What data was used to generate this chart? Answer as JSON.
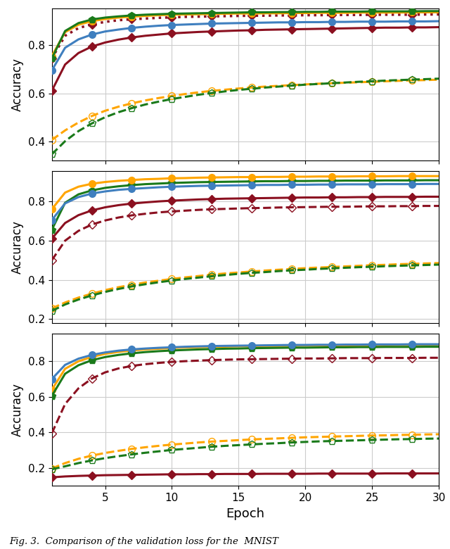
{
  "epochs": [
    1,
    2,
    3,
    4,
    5,
    6,
    7,
    8,
    9,
    10,
    11,
    12,
    13,
    14,
    15,
    16,
    17,
    18,
    19,
    20,
    21,
    22,
    23,
    24,
    25,
    26,
    27,
    28,
    29,
    30
  ],
  "colors": {
    "blue": "#3F7FBF",
    "orange": "#FFA500",
    "green": "#1A7A1A",
    "crimson": "#8B1020"
  },
  "subplot1": {
    "ylim": [
      0.32,
      0.955
    ],
    "yticks": [
      0.4,
      0.6,
      0.8
    ],
    "lines": {
      "green_solid": [
        0.745,
        0.86,
        0.893,
        0.908,
        0.916,
        0.921,
        0.925,
        0.928,
        0.93,
        0.932,
        0.933,
        0.934,
        0.935,
        0.936,
        0.937,
        0.938,
        0.938,
        0.939,
        0.939,
        0.94,
        0.94,
        0.941,
        0.941,
        0.941,
        0.942,
        0.942,
        0.942,
        0.942,
        0.943,
        0.943
      ],
      "orange_solid": [
        0.755,
        0.855,
        0.886,
        0.901,
        0.91,
        0.916,
        0.92,
        0.923,
        0.926,
        0.928,
        0.929,
        0.93,
        0.931,
        0.932,
        0.933,
        0.933,
        0.934,
        0.934,
        0.935,
        0.935,
        0.936,
        0.936,
        0.936,
        0.937,
        0.937,
        0.937,
        0.937,
        0.938,
        0.938,
        0.938
      ],
      "crimson_dotted": [
        0.745,
        0.84,
        0.872,
        0.888,
        0.898,
        0.905,
        0.909,
        0.912,
        0.915,
        0.917,
        0.919,
        0.92,
        0.921,
        0.922,
        0.923,
        0.924,
        0.924,
        0.925,
        0.925,
        0.926,
        0.926,
        0.927,
        0.927,
        0.927,
        0.928,
        0.928,
        0.928,
        0.928,
        0.929,
        0.929
      ],
      "blue_solid": [
        0.695,
        0.79,
        0.825,
        0.845,
        0.858,
        0.866,
        0.873,
        0.878,
        0.882,
        0.885,
        0.887,
        0.889,
        0.891,
        0.892,
        0.893,
        0.894,
        0.895,
        0.896,
        0.896,
        0.897,
        0.897,
        0.898,
        0.898,
        0.899,
        0.899,
        0.899,
        0.9,
        0.9,
        0.9,
        0.901
      ],
      "crimson_solid": [
        0.61,
        0.72,
        0.768,
        0.795,
        0.812,
        0.824,
        0.833,
        0.84,
        0.845,
        0.85,
        0.853,
        0.856,
        0.858,
        0.86,
        0.862,
        0.863,
        0.865,
        0.866,
        0.867,
        0.868,
        0.869,
        0.87,
        0.871,
        0.872,
        0.873,
        0.874,
        0.874,
        0.875,
        0.875,
        0.876
      ],
      "orange_dashed": [
        0.405,
        0.445,
        0.478,
        0.505,
        0.527,
        0.544,
        0.558,
        0.57,
        0.58,
        0.589,
        0.597,
        0.604,
        0.61,
        0.615,
        0.62,
        0.624,
        0.628,
        0.631,
        0.634,
        0.637,
        0.64,
        0.642,
        0.644,
        0.646,
        0.648,
        0.65,
        0.652,
        0.654,
        0.655,
        0.657
      ],
      "green_dashed": [
        0.345,
        0.4,
        0.442,
        0.474,
        0.5,
        0.521,
        0.538,
        0.553,
        0.565,
        0.576,
        0.585,
        0.594,
        0.601,
        0.608,
        0.614,
        0.619,
        0.624,
        0.628,
        0.632,
        0.636,
        0.639,
        0.642,
        0.645,
        0.648,
        0.65,
        0.653,
        0.655,
        0.657,
        0.659,
        0.661
      ]
    }
  },
  "subplot2": {
    "ylim": [
      0.18,
      0.955
    ],
    "yticks": [
      0.2,
      0.4,
      0.6,
      0.8
    ],
    "lines": {
      "orange_solid": [
        0.76,
        0.845,
        0.875,
        0.89,
        0.899,
        0.905,
        0.909,
        0.913,
        0.915,
        0.918,
        0.919,
        0.921,
        0.922,
        0.923,
        0.924,
        0.924,
        0.925,
        0.925,
        0.926,
        0.926,
        0.927,
        0.927,
        0.927,
        0.928,
        0.928,
        0.928,
        0.929,
        0.929,
        0.929,
        0.929
      ],
      "green_solid": [
        0.655,
        0.793,
        0.836,
        0.856,
        0.869,
        0.877,
        0.883,
        0.888,
        0.891,
        0.894,
        0.896,
        0.898,
        0.899,
        0.9,
        0.901,
        0.902,
        0.903,
        0.903,
        0.904,
        0.904,
        0.905,
        0.905,
        0.906,
        0.906,
        0.906,
        0.907,
        0.907,
        0.907,
        0.908,
        0.908
      ],
      "blue_solid": [
        0.705,
        0.79,
        0.822,
        0.84,
        0.851,
        0.859,
        0.864,
        0.868,
        0.872,
        0.875,
        0.877,
        0.879,
        0.88,
        0.881,
        0.882,
        0.883,
        0.884,
        0.884,
        0.885,
        0.885,
        0.886,
        0.886,
        0.887,
        0.887,
        0.887,
        0.888,
        0.888,
        0.888,
        0.889,
        0.889
      ],
      "crimson_solid": [
        0.61,
        0.69,
        0.73,
        0.754,
        0.77,
        0.781,
        0.789,
        0.795,
        0.8,
        0.804,
        0.807,
        0.81,
        0.812,
        0.814,
        0.815,
        0.816,
        0.817,
        0.818,
        0.819,
        0.82,
        0.82,
        0.821,
        0.821,
        0.822,
        0.822,
        0.823,
        0.823,
        0.823,
        0.824,
        0.824
      ],
      "crimson_dashed": [
        0.5,
        0.6,
        0.65,
        0.682,
        0.703,
        0.718,
        0.729,
        0.737,
        0.744,
        0.749,
        0.753,
        0.757,
        0.76,
        0.762,
        0.764,
        0.766,
        0.767,
        0.769,
        0.77,
        0.771,
        0.772,
        0.773,
        0.773,
        0.774,
        0.775,
        0.775,
        0.776,
        0.776,
        0.777,
        0.777
      ],
      "orange_dashed": [
        0.255,
        0.285,
        0.31,
        0.33,
        0.348,
        0.363,
        0.375,
        0.387,
        0.396,
        0.405,
        0.413,
        0.42,
        0.427,
        0.433,
        0.438,
        0.443,
        0.448,
        0.452,
        0.456,
        0.46,
        0.463,
        0.466,
        0.469,
        0.472,
        0.475,
        0.477,
        0.48,
        0.482,
        0.484,
        0.486
      ],
      "green_dashed": [
        0.242,
        0.275,
        0.3,
        0.321,
        0.339,
        0.354,
        0.367,
        0.378,
        0.388,
        0.397,
        0.405,
        0.412,
        0.419,
        0.425,
        0.431,
        0.436,
        0.44,
        0.445,
        0.449,
        0.452,
        0.456,
        0.459,
        0.462,
        0.465,
        0.467,
        0.47,
        0.472,
        0.474,
        0.476,
        0.478
      ]
    }
  },
  "subplot3": {
    "ylim": [
      0.1,
      0.955
    ],
    "yticks": [
      0.2,
      0.4,
      0.6,
      0.8
    ],
    "lines": {
      "blue_solid": [
        0.7,
        0.78,
        0.815,
        0.836,
        0.85,
        0.86,
        0.867,
        0.872,
        0.876,
        0.879,
        0.882,
        0.884,
        0.886,
        0.887,
        0.888,
        0.889,
        0.89,
        0.891,
        0.892,
        0.892,
        0.893,
        0.893,
        0.894,
        0.894,
        0.895,
        0.895,
        0.895,
        0.896,
        0.896,
        0.896
      ],
      "orange_solid": [
        0.64,
        0.758,
        0.8,
        0.825,
        0.842,
        0.853,
        0.861,
        0.867,
        0.871,
        0.875,
        0.878,
        0.88,
        0.882,
        0.883,
        0.885,
        0.886,
        0.887,
        0.887,
        0.888,
        0.889,
        0.889,
        0.89,
        0.89,
        0.891,
        0.891,
        0.891,
        0.892,
        0.892,
        0.892,
        0.893
      ],
      "green_solid": [
        0.605,
        0.73,
        0.778,
        0.806,
        0.824,
        0.836,
        0.845,
        0.852,
        0.857,
        0.861,
        0.864,
        0.867,
        0.869,
        0.871,
        0.872,
        0.874,
        0.875,
        0.876,
        0.877,
        0.877,
        0.878,
        0.879,
        0.879,
        0.88,
        0.88,
        0.881,
        0.881,
        0.881,
        0.882,
        0.882
      ],
      "crimson_dashed": [
        0.395,
        0.56,
        0.648,
        0.703,
        0.738,
        0.76,
        0.774,
        0.784,
        0.791,
        0.797,
        0.801,
        0.804,
        0.807,
        0.809,
        0.811,
        0.812,
        0.813,
        0.814,
        0.815,
        0.816,
        0.816,
        0.817,
        0.818,
        0.818,
        0.818,
        0.819,
        0.819,
        0.819,
        0.82,
        0.82
      ],
      "orange_dashed": [
        0.198,
        0.228,
        0.252,
        0.27,
        0.285,
        0.297,
        0.308,
        0.317,
        0.325,
        0.332,
        0.338,
        0.344,
        0.349,
        0.353,
        0.357,
        0.361,
        0.364,
        0.367,
        0.37,
        0.373,
        0.375,
        0.377,
        0.379,
        0.381,
        0.383,
        0.384,
        0.386,
        0.387,
        0.389,
        0.39
      ],
      "green_dashed": [
        0.193,
        0.21,
        0.228,
        0.243,
        0.256,
        0.267,
        0.277,
        0.286,
        0.294,
        0.302,
        0.308,
        0.314,
        0.32,
        0.325,
        0.329,
        0.333,
        0.337,
        0.34,
        0.344,
        0.347,
        0.35,
        0.352,
        0.354,
        0.356,
        0.358,
        0.36,
        0.362,
        0.363,
        0.365,
        0.366
      ],
      "crimson_solid": [
        0.148,
        0.153,
        0.156,
        0.158,
        0.16,
        0.161,
        0.162,
        0.163,
        0.164,
        0.165,
        0.165,
        0.166,
        0.166,
        0.167,
        0.167,
        0.167,
        0.168,
        0.168,
        0.168,
        0.168,
        0.169,
        0.169,
        0.169,
        0.169,
        0.169,
        0.17,
        0.17,
        0.17,
        0.17,
        0.17
      ]
    }
  },
  "xlabel": "Epoch",
  "ylabel": "Accuracy",
  "caption": "Fig. 3.  Comparison of the validation loss for the  MNIST",
  "linewidth": 2.2,
  "markersize": 7,
  "markevery": 3
}
